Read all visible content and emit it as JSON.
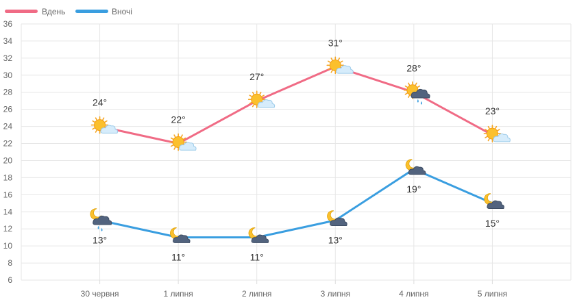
{
  "chart_data": {
    "type": "line",
    "categories": [
      "30 червня",
      "1 липня",
      "2 липня",
      "3 липня",
      "4 липня",
      "5 липня"
    ],
    "series": [
      {
        "name": "Вдень",
        "color": "#f06b85",
        "values": [
          24,
          22,
          27,
          31,
          28,
          23
        ],
        "labels": [
          "24°",
          "22°",
          "27°",
          "31°",
          "28°",
          "23°"
        ],
        "icons": [
          "sun-cloud-icon",
          "sun-cloud-icon",
          "sun-cloud-icon",
          "sun-cloud-icon",
          "sun-rain-cloud-icon",
          "sun-cloud-icon"
        ]
      },
      {
        "name": "Вночі",
        "color": "#3a9ee0",
        "values": [
          13,
          11,
          11,
          13,
          19,
          15
        ],
        "labels": [
          "13°",
          "11°",
          "11°",
          "13°",
          "19°",
          "15°"
        ],
        "icons": [
          "moon-rain-cloud-icon",
          "moon-cloud-icon",
          "moon-cloud-icon",
          "moon-cloud-icon",
          "moon-cloud-icon",
          "moon-cloud-icon"
        ]
      }
    ],
    "y_ticks": [
      "36",
      "34",
      "32",
      "30",
      "28",
      "26",
      "24",
      "22",
      "20",
      "18",
      "16",
      "14",
      "12",
      "10",
      "8",
      "6"
    ],
    "ylim": [
      6,
      36
    ],
    "grid": true,
    "legend": "top-left"
  }
}
